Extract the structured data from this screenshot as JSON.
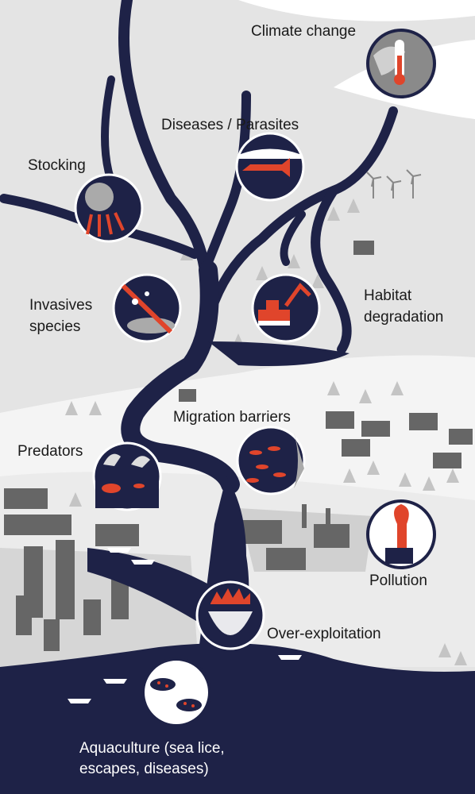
{
  "labels": {
    "climate_change": "Climate change",
    "diseases_parasites": "Diseases / Parasites",
    "stocking": "Stocking",
    "invasive_species": [
      "Invasives",
      "species"
    ],
    "habitat_degradation": [
      "Habitat",
      "degradation"
    ],
    "migration_barriers": "Migration barriers",
    "predators": "Predators",
    "pollution": "Pollution",
    "over_exploitation": "Over-exploitation",
    "aquaculture": [
      "Aquaculture (sea lice,",
      "escapes, diseases)"
    ]
  }
}
